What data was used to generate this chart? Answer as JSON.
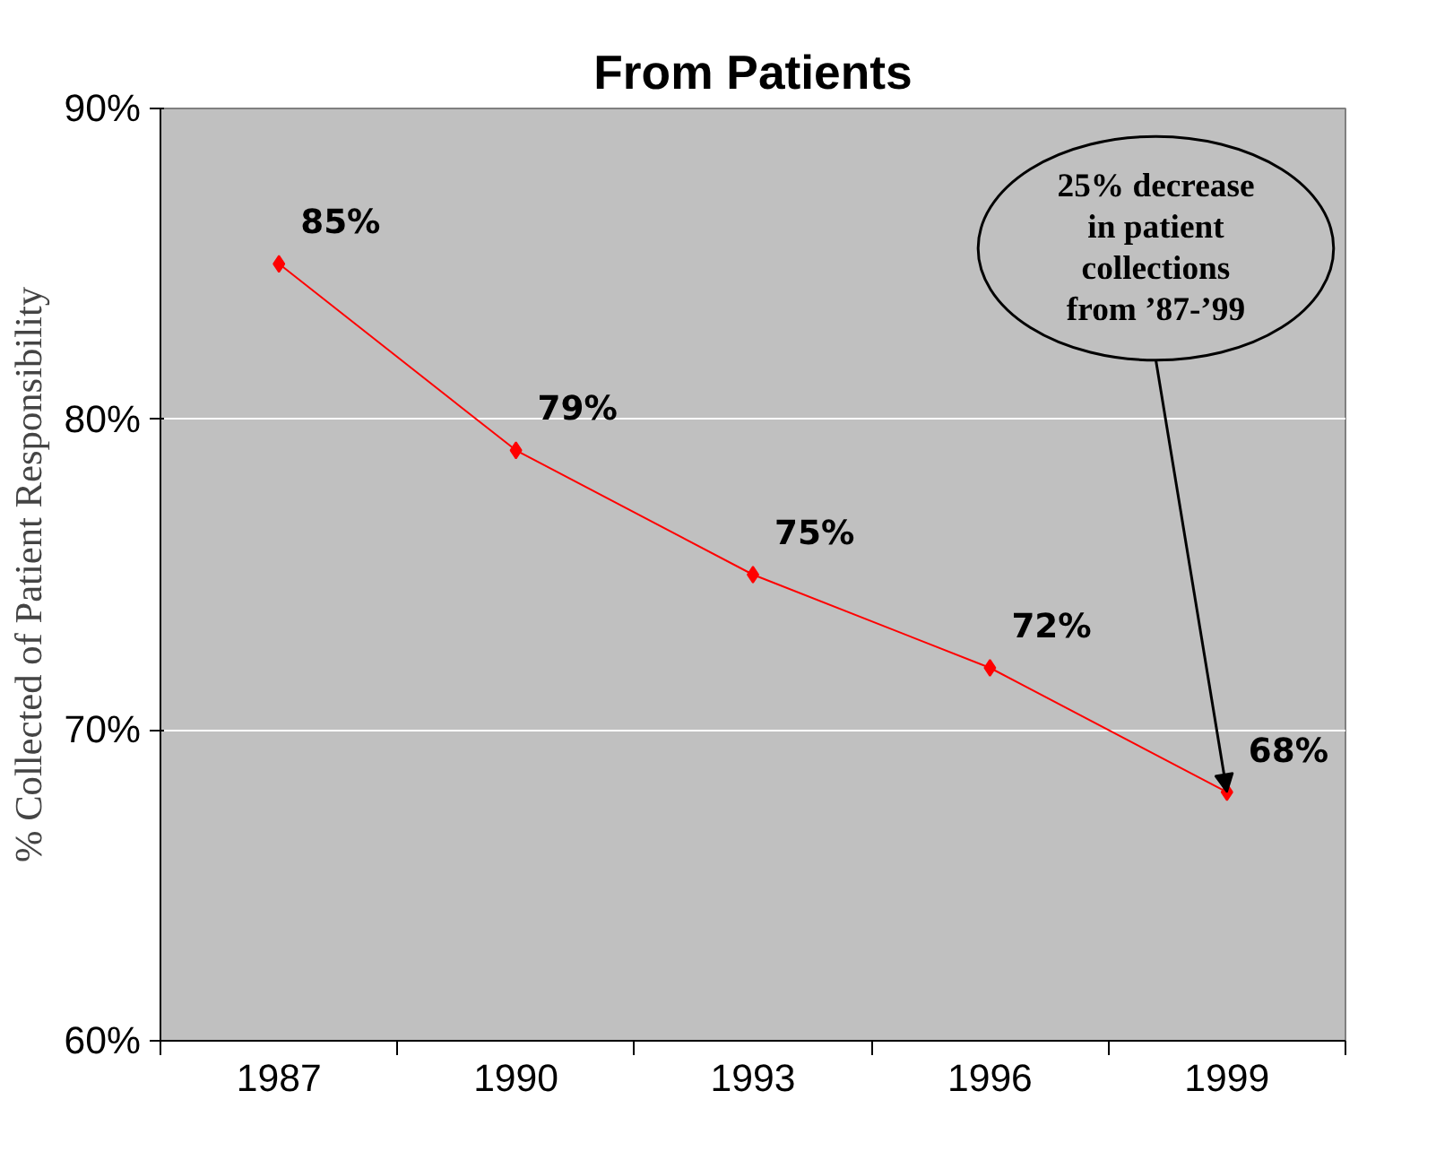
{
  "chart_data": {
    "type": "line",
    "title": "From Patients",
    "ylabel": "% Collected of Patient Responsibility",
    "categories": [
      "1987",
      "1990",
      "1993",
      "1996",
      "1999"
    ],
    "series": [
      {
        "color": "#ff0000",
        "values": [
          85,
          79,
          75,
          72,
          68
        ],
        "value_labels": [
          "85%",
          "79%",
          "75%",
          "72%",
          "68%"
        ]
      }
    ],
    "ylim": [
      60,
      90
    ],
    "yticks": [
      {
        "value": 60,
        "label": "60%"
      },
      {
        "value": 70,
        "label": "70%"
      },
      {
        "value": 80,
        "label": "80%"
      },
      {
        "value": 90,
        "label": "90%"
      }
    ],
    "grid": "y",
    "marker": "diamond",
    "line_style": "solid",
    "annotations": [
      {
        "text": "25% decrease in patient collections from ’87-’99",
        "x": "1999",
        "y": 68
      }
    ]
  }
}
